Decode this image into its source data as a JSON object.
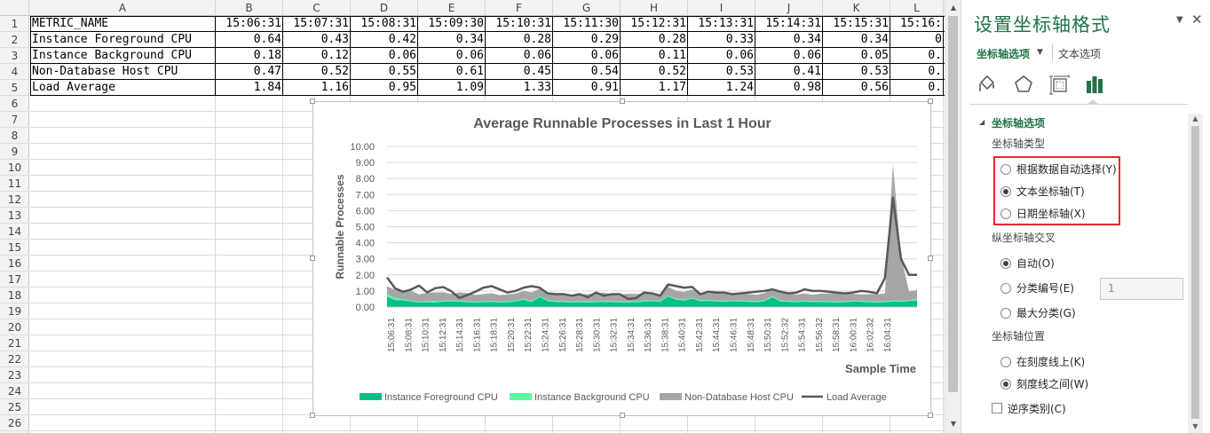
{
  "sheet": {
    "columns": [
      "A",
      "B",
      "C",
      "D",
      "E",
      "F",
      "G",
      "H",
      "I",
      "J",
      "K",
      "L"
    ],
    "rows": [
      "1",
      "2",
      "3",
      "4",
      "5",
      "6",
      "7",
      "8",
      "9",
      "10",
      "11",
      "12",
      "13",
      "14",
      "15",
      "16",
      "17",
      "18",
      "19",
      "20",
      "21",
      "22",
      "23",
      "24",
      "25",
      "26"
    ],
    "table": {
      "header": [
        "METRIC_NAME",
        "15:06:31",
        "15:07:31",
        "15:08:31",
        "15:09:30",
        "15:10:31",
        "15:11:30",
        "15:12:31",
        "15:13:31",
        "15:14:31",
        "15:15:31",
        "15:16:"
      ],
      "rows": [
        [
          "Instance Foreground CPU",
          "0.64",
          "0.43",
          "0.42",
          "0.34",
          "0.28",
          "0.29",
          "0.28",
          "0.33",
          "0.34",
          "0.34",
          "0"
        ],
        [
          "Instance Background CPU",
          "0.18",
          "0.12",
          "0.06",
          "0.06",
          "0.06",
          "0.06",
          "0.11",
          "0.06",
          "0.06",
          "0.05",
          "0."
        ],
        [
          "Non-Database Host CPU",
          "0.47",
          "0.52",
          "0.55",
          "0.61",
          "0.45",
          "0.54",
          "0.52",
          "0.53",
          "0.41",
          "0.53",
          "0."
        ],
        [
          "Load Average",
          "1.84",
          "1.16",
          "0.95",
          "1.09",
          "1.33",
          "0.91",
          "1.17",
          "1.24",
          "0.98",
          "0.56",
          "0."
        ]
      ]
    }
  },
  "chart_data": {
    "type": "area",
    "title": "Average Runnable Processes in Last 1 Hour",
    "xlabel": "Sample Time",
    "ylabel": "Runnable Processes",
    "ylim": [
      0,
      10
    ],
    "yticks": [
      "0.00",
      "1.00",
      "2.00",
      "3.00",
      "4.00",
      "5.00",
      "6.00",
      "7.00",
      "8.00",
      "9.00",
      "10.00"
    ],
    "x_tick_labels": [
      "15:06:31",
      "15:08:31",
      "15:10:31",
      "15:12:31",
      "15:14:31",
      "15:16:31",
      "15:18:31",
      "15:20:31",
      "15:22:31",
      "15:24:31",
      "15:26:31",
      "15:28:31",
      "15:30:31",
      "15:32:31",
      "15:34:31",
      "15:36:31",
      "15:38:31",
      "15:40:31",
      "15:42:31",
      "15:44:31",
      "15:46:31",
      "15:48:31",
      "15:50:31",
      "15:52:32",
      "15:54:31",
      "15:56:32",
      "15:58:31",
      "16:00:31",
      "16:02:32",
      "16:04:31"
    ],
    "grid": true,
    "legend_position": "bottom",
    "stacked": true,
    "series": [
      {
        "name": "Instance Foreground CPU",
        "kind": "stacked-area",
        "color": "#00c08a",
        "values": [
          0.64,
          0.43,
          0.42,
          0.34,
          0.28,
          0.29,
          0.28,
          0.33,
          0.34,
          0.34,
          0.3,
          0.28,
          0.3,
          0.32,
          0.28,
          0.3,
          0.34,
          0.45,
          0.3,
          0.62,
          0.36,
          0.32,
          0.3,
          0.28,
          0.3,
          0.28,
          0.3,
          0.32,
          0.3,
          0.28,
          0.28,
          0.3,
          0.34,
          0.36,
          0.32,
          0.65,
          0.45,
          0.4,
          0.52,
          0.36,
          0.38,
          0.34,
          0.32,
          0.36,
          0.34,
          0.32,
          0.3,
          0.36,
          0.6,
          0.34,
          0.32,
          0.3,
          0.34,
          0.3,
          0.32,
          0.3,
          0.28,
          0.3,
          0.34,
          0.32,
          0.3,
          0.28,
          0.3,
          0.34,
          0.32,
          0.36,
          0.4
        ]
      },
      {
        "name": "Instance Background CPU",
        "kind": "stacked-area",
        "color": "#5ef5a5",
        "values": [
          0.18,
          0.12,
          0.06,
          0.06,
          0.06,
          0.06,
          0.11,
          0.06,
          0.06,
          0.05,
          0.06,
          0.05,
          0.06,
          0.06,
          0.06,
          0.06,
          0.06,
          0.06,
          0.06,
          0.06,
          0.06,
          0.06,
          0.06,
          0.06,
          0.06,
          0.06,
          0.06,
          0.06,
          0.06,
          0.06,
          0.06,
          0.06,
          0.06,
          0.06,
          0.06,
          0.06,
          0.06,
          0.06,
          0.06,
          0.06,
          0.06,
          0.06,
          0.06,
          0.06,
          0.06,
          0.06,
          0.06,
          0.06,
          0.06,
          0.06,
          0.06,
          0.06,
          0.06,
          0.06,
          0.06,
          0.06,
          0.06,
          0.06,
          0.06,
          0.06,
          0.06,
          0.06,
          0.06,
          0.06,
          0.06,
          0.06,
          0.06
        ]
      },
      {
        "name": "Non-Database Host CPU",
        "kind": "stacked-area",
        "color": "#a6a6a6",
        "values": [
          0.47,
          0.52,
          0.55,
          0.61,
          0.45,
          0.54,
          0.52,
          0.53,
          0.41,
          0.53,
          0.5,
          0.42,
          0.45,
          0.48,
          0.4,
          0.42,
          0.44,
          0.5,
          0.55,
          0.45,
          0.4,
          0.38,
          0.42,
          0.4,
          0.44,
          0.46,
          0.48,
          0.52,
          0.42,
          0.45,
          0.48,
          0.45,
          0.42,
          0.44,
          0.4,
          0.55,
          0.5,
          0.48,
          0.52,
          0.45,
          0.42,
          0.48,
          0.45,
          0.4,
          0.44,
          0.42,
          0.4,
          0.45,
          0.5,
          0.48,
          0.45,
          0.42,
          0.44,
          0.4,
          0.45,
          0.48,
          0.52,
          0.45,
          0.42,
          0.4,
          0.44,
          0.45,
          0.48,
          8.5,
          2.8,
          0.55,
          0.6
        ]
      },
      {
        "name": "Load Average",
        "kind": "line",
        "color": "#595959",
        "values": [
          1.84,
          1.16,
          0.95,
          1.09,
          1.33,
          0.91,
          1.17,
          1.24,
          0.98,
          0.56,
          0.75,
          0.95,
          1.2,
          1.3,
          1.1,
          0.9,
          1.0,
          1.2,
          1.3,
          1.2,
          0.85,
          0.8,
          0.8,
          0.7,
          0.8,
          0.6,
          0.9,
          0.7,
          0.8,
          0.8,
          0.5,
          0.55,
          0.9,
          0.85,
          0.7,
          1.4,
          1.3,
          1.2,
          1.25,
          0.8,
          0.95,
          0.9,
          0.9,
          0.8,
          0.85,
          0.9,
          0.95,
          1.0,
          1.1,
          0.95,
          0.85,
          0.9,
          1.1,
          1.0,
          1.0,
          0.95,
          0.9,
          0.85,
          0.9,
          1.0,
          0.95,
          0.85,
          1.8,
          6.8,
          3.0,
          2.0,
          2.0
        ]
      }
    ]
  },
  "pane": {
    "title": "设置坐标轴格式",
    "dropdown_icon": "chevron-down-icon",
    "close_icon": "close-icon",
    "tab_axis": "坐标轴选项",
    "tab_text": "文本选项",
    "icons": [
      "fill-line-icon",
      "effects-pentagon-icon",
      "size-properties-icon",
      "axis-options-bars-icon"
    ],
    "section": "坐标轴选项",
    "axis_type_label": "坐标轴类型",
    "axis_type_options": [
      "根据数据自动选择(Y)",
      "文本坐标轴(T)",
      "日期坐标轴(X)"
    ],
    "axis_type_selected": 1,
    "cross_label": "纵坐标轴交叉",
    "cross_options": [
      "自动(O)",
      "分类编号(E)",
      "最大分类(G)"
    ],
    "cross_selected": 0,
    "cross_number": "1",
    "position_label": "坐标轴位置",
    "position_options": [
      "在刻度线上(K)",
      "刻度线之间(W)"
    ],
    "position_selected": 1,
    "reverse_label": "逆序类别(C)",
    "accent_color": "#217346",
    "highlight_color": "#e8272b"
  }
}
